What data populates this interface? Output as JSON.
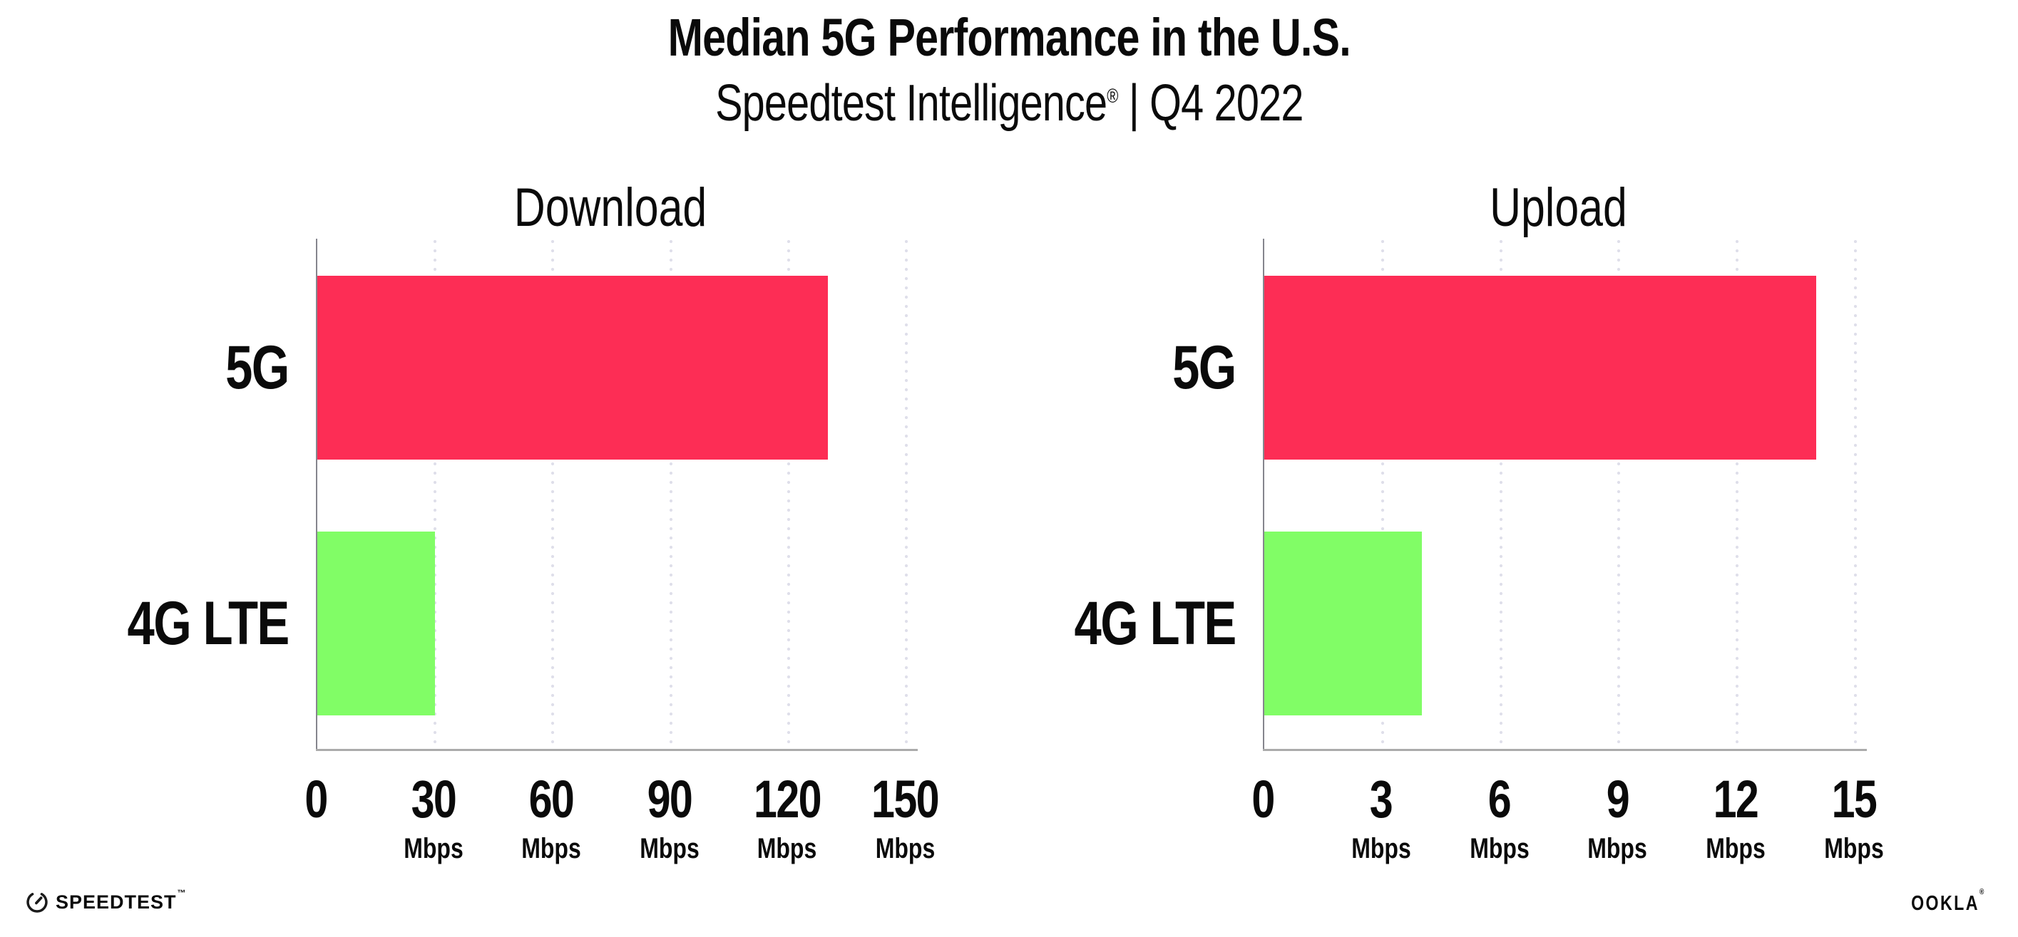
{
  "header": {
    "title": "Median 5G Performance in the U.S.",
    "subtitle_product": "Speedtest Intelligence",
    "subtitle_reg": "®",
    "subtitle_rest": " | Q4 2022"
  },
  "colors": {
    "bar_5g": "#FD2D55",
    "bar_4g_lte": "#81FD66",
    "gridline": "#DFDFEA",
    "y_axis": "#85858D",
    "x_axis": "#ABABAB",
    "text": "#0A0A0A"
  },
  "chart_data": [
    {
      "type": "bar",
      "orientation": "horizontal",
      "title": "Download",
      "categories": [
        "5G",
        "4G LTE"
      ],
      "values": [
        130,
        30
      ],
      "unit": "Mbps",
      "xlim": [
        0,
        150
      ],
      "ticks": [
        0,
        30,
        60,
        90,
        120,
        150
      ],
      "gridlines": "dotted-vertical",
      "legend": "none",
      "bar_colors": [
        "#FD2D55",
        "#81FD66"
      ]
    },
    {
      "type": "bar",
      "orientation": "horizontal",
      "title": "Upload",
      "categories": [
        "5G",
        "4G LTE"
      ],
      "values": [
        14,
        4
      ],
      "unit": "Mbps",
      "xlim": [
        0,
        15
      ],
      "ticks": [
        0,
        3,
        6,
        9,
        12,
        15
      ],
      "gridlines": "dotted-vertical",
      "legend": "none",
      "bar_colors": [
        "#FD2D55",
        "#81FD66"
      ]
    }
  ],
  "footer": {
    "speedtest_label": "SPEEDTEST",
    "speedtest_tm": "™",
    "ookla_label": "OOKLA",
    "ookla_reg": "®"
  }
}
